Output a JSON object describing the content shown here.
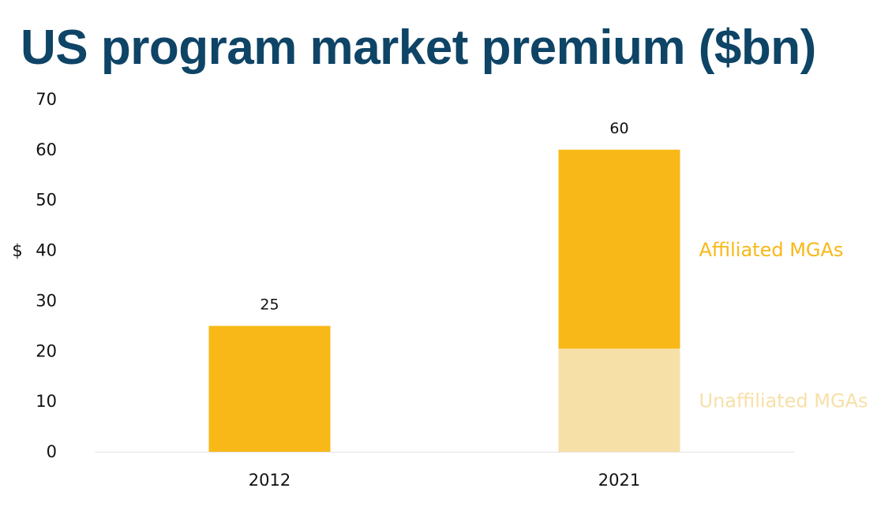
{
  "chart_data": {
    "type": "bar",
    "stacked": true,
    "title": "US program market premium ($bn)",
    "ylabel": "$",
    "xlabel": "",
    "ylim": [
      0,
      70
    ],
    "yticks": [
      0,
      10,
      20,
      30,
      40,
      50,
      60,
      70
    ],
    "yticks_labels": [
      "0",
      "10",
      "20",
      "30",
      "40",
      "50",
      "60",
      "70"
    ],
    "categories": [
      "2012",
      "2021"
    ],
    "series": [
      {
        "name": "Unaffiliated MGAs",
        "values": [
          0,
          20.5
        ],
        "color": "#f7e0a8"
      },
      {
        "name": "Affiliated MGAs",
        "values": [
          25,
          39.5
        ],
        "color": "#f8b817"
      }
    ],
    "totals": [
      25,
      60
    ],
    "totals_labels": [
      "25",
      "60"
    ],
    "grid": false,
    "legend": "right, inline next to bars"
  }
}
